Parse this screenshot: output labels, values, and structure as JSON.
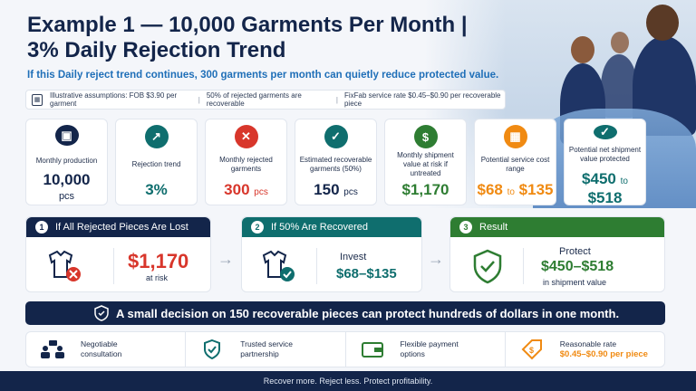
{
  "header": {
    "title_line1": "Example 1 — 10,000 Garments Per Month |",
    "title_line2": "3% Daily Rejection Trend",
    "subtitle": "If this Daily reject trend continues, 300 garments per month can quietly reduce protected value."
  },
  "assumptions": {
    "icon": "calculator-icon",
    "items": [
      "Illustrative assumptions: FOB $3.90 per garment",
      "50% of rejected garments are recoverable",
      "FixFab service rate $0.45–$0.90 per recoverable piece"
    ]
  },
  "cards": [
    {
      "icon": "box-icon",
      "glyph": "▣",
      "color": "#13254a",
      "label": "Monthly production",
      "value": "10,000",
      "unit": "pcs",
      "value_color": "#13254a"
    },
    {
      "icon": "trend-up-icon",
      "glyph": "↗",
      "color": "#0f6e6e",
      "label": "Rejection trend",
      "value": "3%",
      "unit": "",
      "value_color": "#0f6e6e"
    },
    {
      "icon": "rejected-shirt-icon",
      "glyph": "✕",
      "color": "#d8362b",
      "label": "Monthly rejected garments",
      "value": "300",
      "unit": "pcs",
      "value_color": "#d8362b"
    },
    {
      "icon": "shirt-check-icon",
      "glyph": "✓",
      "color": "#0f6e6e",
      "label": "Estimated recoverable garments (50%)",
      "value": "150",
      "unit": "pcs",
      "value_color": "#13254a"
    },
    {
      "icon": "dollar-icon",
      "glyph": "$",
      "color": "#2e7d32",
      "label": "Monthly shipment value at risk if untreated",
      "value": "$1,170",
      "unit": "",
      "value_color": "#2e7d32"
    },
    {
      "icon": "calculator-icon",
      "glyph": "▦",
      "color": "#f08a12",
      "label": "Potential service cost range",
      "value": "$68",
      "unit": "to",
      "value2": "$135",
      "value_color": "#f08a12"
    },
    {
      "icon": "shield-check-icon",
      "glyph": "✓",
      "color": "#0f6e6e",
      "label": "Potential net shipment value protected",
      "value": "$450",
      "unit": "to",
      "value2": "$518",
      "value_color": "#0f6e6e"
    }
  ],
  "steps": [
    {
      "num": "1",
      "title": "If All Rejected Pieces Are Lost",
      "value": "$1,170",
      "note": "at risk"
    },
    {
      "num": "2",
      "title": "If 50% Are Recovered",
      "label": "Invest",
      "value": "$68–$135"
    },
    {
      "num": "3",
      "title": "Result",
      "label": "Protect",
      "value": "$450–$518",
      "note": "in shipment value"
    }
  ],
  "banner": "A small decision on 150 recoverable pieces can protect hundreds of dollars in one month.",
  "features": [
    {
      "icon": "consultation-icon",
      "line1": "Negotiable",
      "line2": "consultation"
    },
    {
      "icon": "shield-check-icon",
      "line1": "Trusted service",
      "line2": "partnership"
    },
    {
      "icon": "wallet-icon",
      "line1": "Flexible payment",
      "line2": "options"
    },
    {
      "icon": "price-tag-icon",
      "line1": "Reasonable rate",
      "line2": "$0.45–$0.90 per piece"
    }
  ],
  "footer": "Recover more. Reject less. Protect profitability.",
  "colors": {
    "navy": "#13254a",
    "teal": "#0f6e6e",
    "green": "#2e7d32",
    "red": "#d8362b",
    "orange": "#f08a12"
  }
}
